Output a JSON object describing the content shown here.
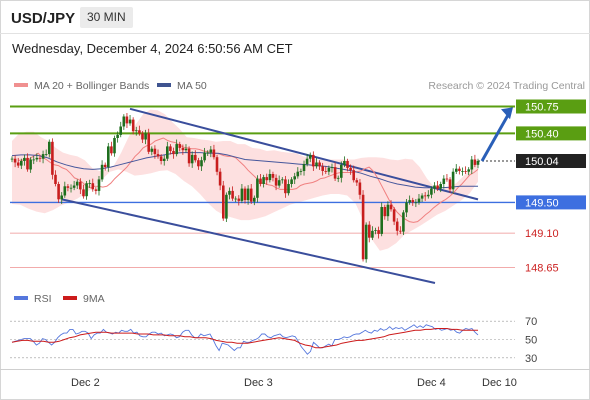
{
  "header": {
    "symbol": "USD/JPY",
    "timeframe": "30 MIN"
  },
  "datetime": "Wednesday, December 4, 2024 6:50:56 AM CET",
  "legend": {
    "ma20": "MA 20 + Bollinger Bands",
    "ma50": "MA 50",
    "rsi": "RSI",
    "ma9": "9MA"
  },
  "credit": "Research © 2024 Trading Central",
  "colors": {
    "resistance": "#5a9e12",
    "support": "#3d6fe0",
    "channel": "#3a4e9c",
    "candle_up": "#1e6e1e",
    "candle_down": "#c81e1e",
    "ma20": "#f08080",
    "bands": "#fcd6d6",
    "ma50": "#46579c",
    "rsi": "#5577dd",
    "rsi_ma": "#cc1b1b"
  },
  "chart_data": [
    {
      "type": "candlestick",
      "title": "USD/JPY 30 MIN",
      "ylim": [
        148.45,
        150.9
      ],
      "x_ticks": [
        "Dec 2",
        "Dec 3",
        "Dec 4",
        "Dec 10"
      ],
      "levels": [
        {
          "value": 150.75,
          "label": "150.75",
          "kind": "resistance"
        },
        {
          "value": 150.4,
          "label": "150.40",
          "kind": "resistance"
        },
        {
          "value": 150.04,
          "label": "150.04",
          "kind": "last"
        },
        {
          "value": 149.5,
          "label": "149.50",
          "kind": "support"
        },
        {
          "value": 149.1,
          "label": "149.10",
          "kind": "support"
        },
        {
          "value": 148.65,
          "label": "148.65",
          "kind": "support"
        }
      ],
      "close": [
        150.07,
        150.02,
        149.98,
        150.04,
        150.08,
        149.93,
        150.06,
        150.06,
        150.08,
        150.07,
        150.13,
        150.13,
        150.29,
        149.86,
        149.74,
        149.54,
        149.59,
        149.71,
        149.69,
        149.69,
        149.72,
        149.77,
        149.67,
        149.58,
        149.75,
        149.75,
        149.67,
        149.65,
        149.8,
        149.99,
        149.96,
        150.23,
        150.14,
        150.34,
        150.38,
        150.49,
        150.62,
        150.53,
        150.58,
        150.43,
        150.44,
        150.4,
        150.32,
        150.4,
        150.16,
        150.2,
        150.13,
        150.1,
        150.04,
        150.07,
        150.23,
        150.17,
        150.13,
        150.26,
        150.21,
        150.18,
        150.2,
        150.01,
        150.12,
        150.05,
        149.97,
        150.05,
        150.15,
        150.15,
        150.19,
        150.09,
        149.9,
        149.72,
        149.29,
        149.6,
        149.65,
        149.55,
        149.55,
        149.52,
        149.68,
        149.53,
        149.68,
        149.51,
        149.56,
        149.81,
        149.74,
        149.83,
        149.79,
        149.87,
        149.82,
        149.72,
        149.79,
        149.8,
        149.62,
        149.74,
        149.8,
        149.84,
        149.9,
        149.91,
        150.0,
        150.07,
        150.12,
        149.97,
        150.02,
        149.97,
        149.91,
        149.9,
        149.95,
        149.96,
        149.81,
        149.82,
        149.99,
        150.04,
        149.95,
        149.92,
        149.79,
        149.76,
        149.6,
        148.76,
        149.21,
        149.04,
        149.13,
        149.14,
        149.09,
        149.44,
        149.32,
        149.47,
        149.41,
        149.25,
        149.13,
        149.12,
        149.37,
        149.5,
        149.53,
        149.5,
        149.5,
        149.55,
        149.59,
        149.58,
        149.6,
        149.68,
        149.72,
        149.68,
        149.74,
        149.81,
        149.8,
        149.67,
        149.9,
        149.94,
        149.91,
        149.91,
        149.9,
        149.93,
        150.06,
        149.99,
        150.04
      ],
      "ma20": [
        150.05,
        150.05,
        150.06,
        150.07,
        150.11,
        150.14,
        150.09,
        150.06,
        150.02,
        149.99,
        149.98,
        149.95,
        149.93,
        149.88,
        149.82,
        149.8,
        149.76,
        149.71,
        149.69,
        149.71,
        149.71,
        149.7,
        149.71,
        149.75,
        149.81,
        149.86,
        149.91,
        149.96,
        150.03,
        150.1,
        150.15,
        150.21,
        150.24,
        150.26,
        150.3,
        150.32,
        150.34,
        150.31,
        150.29,
        150.28,
        150.25,
        150.22,
        150.21,
        150.2,
        150.2,
        150.19,
        150.17,
        150.16,
        150.15,
        150.14,
        150.13,
        150.11,
        150.1,
        150.1,
        150.08,
        150.03,
        149.98,
        149.92,
        149.87,
        149.82,
        149.76,
        149.75,
        149.73,
        149.72,
        149.69,
        149.67,
        149.67,
        149.67,
        149.67,
        149.68,
        149.72,
        149.74,
        149.75,
        149.76,
        149.78,
        149.81,
        149.82,
        149.84,
        149.86,
        149.88,
        149.89,
        149.89,
        149.89,
        149.89,
        149.9,
        149.91,
        149.94,
        149.96,
        149.91,
        149.83,
        149.73,
        149.63,
        149.53,
        149.44,
        149.37,
        149.32,
        149.28,
        149.25,
        149.24,
        149.25,
        149.29,
        149.34,
        149.38,
        149.43,
        149.47,
        149.51,
        149.54,
        149.58,
        149.63,
        149.69,
        149.74,
        149.8,
        149.86,
        149.89,
        149.93
      ],
      "ma50": [
        150.11,
        150.12,
        150.12,
        150.11,
        150.08,
        150.03,
        149.99,
        149.96,
        149.94,
        149.93,
        149.94,
        149.96,
        149.99,
        150.02,
        150.05,
        150.08,
        150.1,
        150.12,
        150.14,
        150.15,
        150.15,
        150.15,
        150.14,
        150.14,
        150.12,
        150.09,
        150.06,
        150.05,
        150.04,
        150.03,
        150.02,
        150.01,
        150.0,
        149.99,
        149.98,
        149.97,
        149.95,
        149.93,
        149.91,
        149.88,
        149.84,
        149.81,
        149.77,
        149.74,
        149.72,
        149.7,
        149.69,
        149.69,
        149.69,
        149.7,
        149.71,
        149.71,
        149.71
      ],
      "bb_upper": [
        150.3,
        150.4,
        150.42,
        150.42,
        150.35,
        150.3,
        150.21,
        150.15,
        150.12,
        150.1,
        150.05,
        149.95,
        149.91,
        149.92,
        149.98,
        150.15,
        150.35,
        150.52,
        150.65,
        150.71,
        150.7,
        150.65,
        150.55,
        150.46,
        150.35,
        150.34,
        150.32,
        150.31,
        150.29,
        150.3,
        150.3,
        150.26,
        150.26,
        150.21,
        150.2,
        150.17,
        150.18,
        150.16,
        150.15,
        150.14,
        150.1,
        150.08,
        150.06,
        150.06,
        150.06,
        150.06,
        150.06,
        150.06,
        150.08,
        150.09,
        150.09,
        150.08,
        150.06,
        150.05,
        150.07,
        150.06,
        149.96,
        149.81,
        149.7,
        149.67,
        149.7,
        149.75,
        149.84,
        149.95,
        150.06
      ],
      "bb_lower": [
        149.48,
        149.47,
        149.42,
        149.38,
        149.36,
        149.4,
        149.46,
        149.5,
        149.55,
        149.62,
        149.7,
        149.8,
        149.9,
        149.93,
        149.9,
        149.85,
        149.86,
        149.88,
        149.91,
        149.92,
        149.87,
        149.78,
        149.71,
        149.61,
        149.49,
        149.39,
        149.33,
        149.3,
        149.27,
        149.27,
        149.29,
        149.32,
        149.37,
        149.42,
        149.47,
        149.5,
        149.53,
        149.56,
        149.59,
        149.61,
        149.61,
        149.59,
        149.49,
        149.26,
        149.02,
        148.87,
        148.9,
        148.97,
        149.08,
        149.14,
        149.2,
        149.27,
        149.34,
        149.39,
        149.46,
        149.53,
        149.62,
        149.77
      ]
    },
    {
      "type": "line",
      "title": "RSI",
      "ylim": [
        20,
        80
      ],
      "y_ticks": [
        70,
        50,
        30
      ],
      "series": [
        {
          "name": "RSI",
          "values": [
            47,
            48,
            49,
            50,
            51,
            51,
            51,
            48,
            44,
            46,
            51,
            50,
            47,
            44,
            47,
            52,
            55,
            57,
            57,
            61,
            61,
            56,
            57,
            59,
            59,
            57,
            51,
            55,
            57,
            57,
            61,
            58,
            57,
            56,
            58,
            57,
            60,
            59,
            59,
            61,
            57,
            58,
            54,
            53,
            53,
            56,
            58,
            58,
            56,
            57,
            54,
            55,
            56,
            55,
            52,
            53,
            58,
            60,
            60,
            55,
            52,
            52,
            56,
            54,
            55,
            56,
            50,
            43,
            38,
            46,
            45,
            44,
            41,
            38,
            41,
            41,
            48,
            47,
            47,
            49,
            50,
            52,
            56,
            56,
            53,
            52,
            54,
            55,
            56,
            53,
            52,
            53,
            54,
            53,
            48,
            42,
            38,
            34,
            37,
            47,
            44,
            41,
            41,
            43,
            45,
            43,
            50,
            50,
            51,
            53,
            52,
            53,
            55,
            56,
            56,
            58,
            60,
            58,
            57,
            60,
            59,
            62,
            60,
            61,
            64,
            61,
            63,
            62,
            63,
            60,
            62,
            64,
            66,
            63,
            65,
            63,
            66,
            65,
            64,
            61,
            62,
            60,
            61,
            62,
            60,
            61,
            58,
            57,
            60,
            62,
            61,
            62,
            58,
            55
          ]
        },
        {
          "name": "9MA",
          "values": [
            47,
            48,
            49,
            49,
            48,
            48,
            48,
            47,
            47,
            48,
            50,
            52,
            53,
            55,
            56,
            57,
            58,
            58,
            58,
            57,
            57,
            57,
            57,
            57,
            56,
            56,
            56,
            55,
            55,
            55,
            54,
            54,
            54,
            53,
            53,
            52,
            52,
            52,
            51,
            49,
            48,
            47,
            47,
            46,
            46,
            46,
            47,
            48,
            49,
            50,
            51,
            52,
            51,
            50,
            49,
            46,
            44,
            43,
            41,
            41,
            42,
            43,
            44,
            46,
            47,
            48,
            49,
            49,
            50,
            51,
            52,
            53,
            55,
            56,
            57,
            58,
            59,
            60,
            60,
            61,
            61,
            62,
            62,
            62,
            61,
            61,
            60,
            60,
            60,
            60
          ]
        }
      ]
    }
  ]
}
